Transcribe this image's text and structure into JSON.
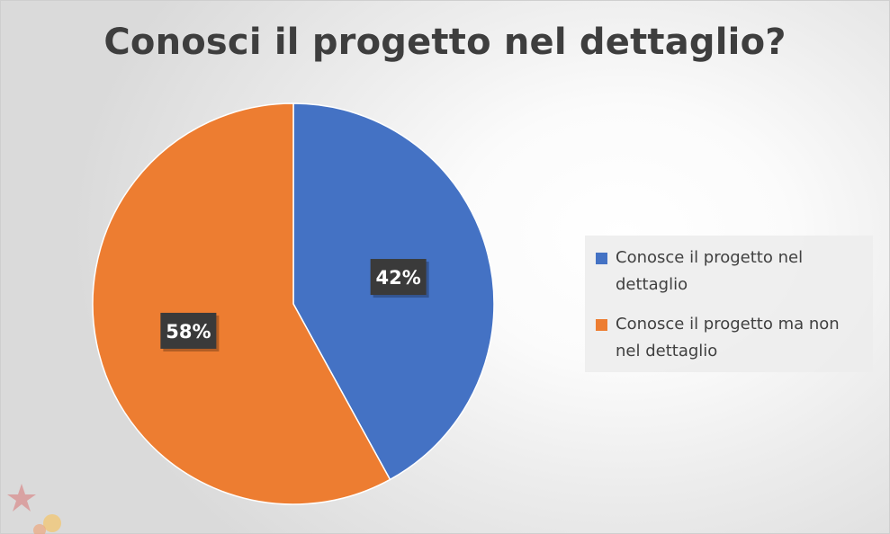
{
  "title": "Conosci il progetto nel dettaglio?",
  "chart_data": {
    "type": "pie",
    "title": "Conosci il progetto nel dettaglio?",
    "slices": [
      {
        "label": "Conosce il progetto nel dettaglio",
        "value": 42,
        "display": "42%",
        "color": "#4472C4"
      },
      {
        "label": "Conosce il progetto ma non nel dettaglio",
        "value": 58,
        "display": "58%",
        "color": "#ED7D31"
      }
    ],
    "legend_position": "right",
    "data_label_style": "dark box, white bold text"
  }
}
